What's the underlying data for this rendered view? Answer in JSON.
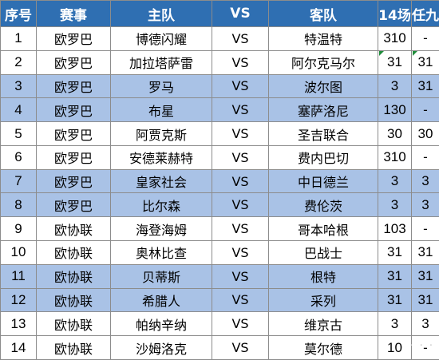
{
  "headers": [
    "序号",
    "赛事",
    "主队",
    "VS",
    "客队",
    "14场",
    "任九"
  ],
  "highlight_color": "#a9c2e6",
  "header_color": "#2f6fb2",
  "rows": [
    {
      "no": "1",
      "league": "欧罗巴",
      "home": "博德闪耀",
      "vs": "VS",
      "away": "特温特",
      "p14": "310",
      "r9": "-"
    },
    {
      "no": "2",
      "league": "欧罗巴",
      "home": "加拉塔萨雷",
      "vs": "VS",
      "away": "阿尔克马尔",
      "p14": "31",
      "r9": "31"
    },
    {
      "no": "3",
      "league": "欧罗巴",
      "home": "罗马",
      "vs": "VS",
      "away": "波尔图",
      "p14": "3",
      "r9": "31"
    },
    {
      "no": "4",
      "league": "欧罗巴",
      "home": "布星",
      "vs": "VS",
      "away": "塞萨洛尼",
      "p14": "130",
      "r9": "-"
    },
    {
      "no": "5",
      "league": "欧罗巴",
      "home": "阿贾克斯",
      "vs": "VS",
      "away": "圣吉联合",
      "p14": "30",
      "r9": "30"
    },
    {
      "no": "6",
      "league": "欧罗巴",
      "home": "安德莱赫特",
      "vs": "VS",
      "away": "费内巴切",
      "p14": "310",
      "r9": "-"
    },
    {
      "no": "7",
      "league": "欧罗巴",
      "home": "皇家社会",
      "vs": "VS",
      "away": "中日德兰",
      "p14": "3",
      "r9": "3"
    },
    {
      "no": "8",
      "league": "欧罗巴",
      "home": "比尔森",
      "vs": "VS",
      "away": "费伦茨",
      "p14": "3",
      "r9": "3"
    },
    {
      "no": "9",
      "league": "欧协联",
      "home": "海登海姆",
      "vs": "VS",
      "away": "哥本哈根",
      "p14": "103",
      "r9": "-"
    },
    {
      "no": "10",
      "league": "欧协联",
      "home": "奥林比查",
      "vs": "VS",
      "away": "巴战士",
      "p14": "31",
      "r9": "31"
    },
    {
      "no": "11",
      "league": "欧协联",
      "home": "贝蒂斯",
      "vs": "VS",
      "away": "根特",
      "p14": "31",
      "r9": "31"
    },
    {
      "no": "12",
      "league": "欧协联",
      "home": "希腊人",
      "vs": "VS",
      "away": "采列",
      "p14": "31",
      "r9": "31"
    },
    {
      "no": "13",
      "league": "欧协联",
      "home": "帕纳辛纳",
      "vs": "VS",
      "away": "维京古",
      "p14": "3",
      "r9": "3"
    },
    {
      "no": "14",
      "league": "欧协联",
      "home": "沙姆洛克",
      "vs": "VS",
      "away": "莫尔德",
      "p14": "10",
      "r9": "-"
    }
  ],
  "highlighted_rows": [
    3,
    4,
    7,
    8,
    11,
    12
  ]
}
